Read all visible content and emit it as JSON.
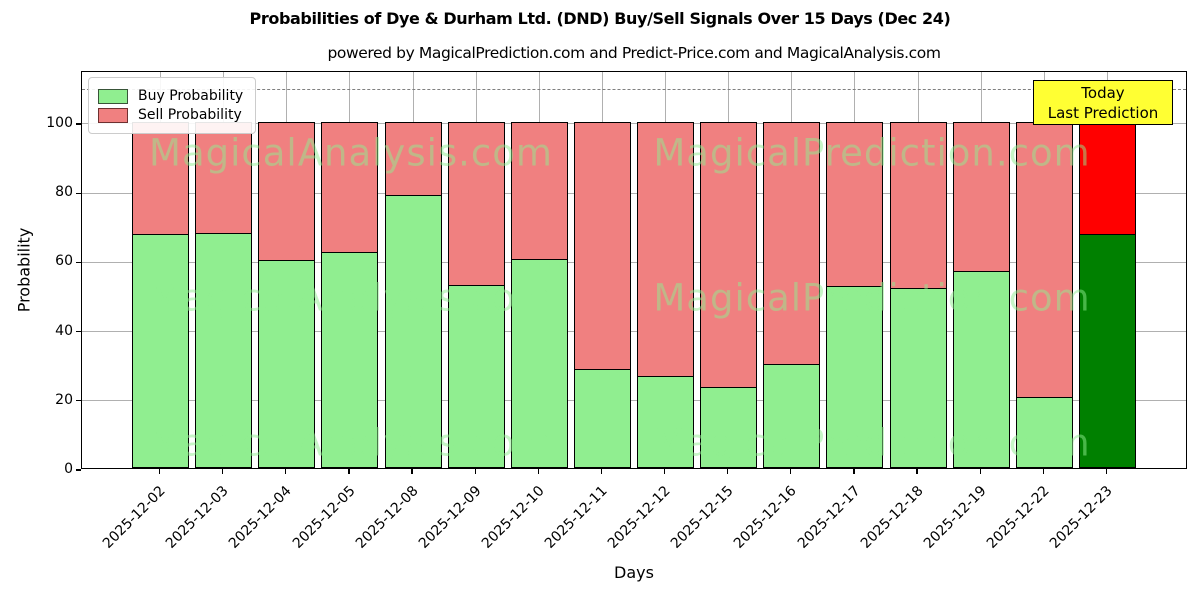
{
  "header": {
    "title": "Probabilities of Dye & Durham Ltd. (DND) Buy/Sell Signals Over 15 Days (Dec 24)",
    "subtitle": "powered by MagicalPrediction.com and Predict-Price.com and MagicalAnalysis.com"
  },
  "chart_data": {
    "type": "bar",
    "stacked": true,
    "title": "Probabilities of Dye & Durham Ltd. (DND) Buy/Sell Signals Over 15 Days (Dec 24)",
    "xlabel": "Days",
    "ylabel": "Probability",
    "ylim": [
      0,
      115
    ],
    "yticks": [
      0,
      20,
      40,
      60,
      80,
      100
    ],
    "grid": true,
    "dashed_line_y": 110,
    "legend_position": "upper left",
    "categories": [
      "2025-12-02",
      "2025-12-03",
      "2025-12-04",
      "2025-12-05",
      "2025-12-08",
      "2025-12-09",
      "2025-12-10",
      "2025-12-11",
      "2025-12-12",
      "2025-12-15",
      "2025-12-16",
      "2025-12-17",
      "2025-12-18",
      "2025-12-19",
      "2025-12-22",
      "2025-12-23"
    ],
    "series": [
      {
        "name": "Buy Probability",
        "color": "#90ee90",
        "values": [
          67.5,
          68,
          60,
          62.5,
          79,
          53,
          60.5,
          28.5,
          26.5,
          23.5,
          30,
          52.5,
          52,
          57,
          20.5,
          67.5
        ]
      },
      {
        "name": "Sell Probability",
        "color": "#f08080",
        "values": [
          32.5,
          32,
          40,
          37.5,
          21,
          47,
          39.5,
          71.5,
          73.5,
          76.5,
          70,
          47.5,
          48,
          43,
          79.5,
          32.5
        ]
      }
    ],
    "today_bar": {
      "category": "2025-12-23",
      "index": 15,
      "buy_color": "#008000",
      "sell_color": "#ff0000"
    }
  },
  "legend": {
    "items": [
      {
        "label": "Buy Probability",
        "color": "#90ee90"
      },
      {
        "label": "Sell Probability",
        "color": "#f08080"
      }
    ]
  },
  "annotations": {
    "today_label": {
      "line1": "Today",
      "line2": "Last Prediction",
      "bg": "#ffff33"
    },
    "watermarks": [
      "MagicalAnalysis.com",
      "MagicalPrediction.com"
    ]
  }
}
